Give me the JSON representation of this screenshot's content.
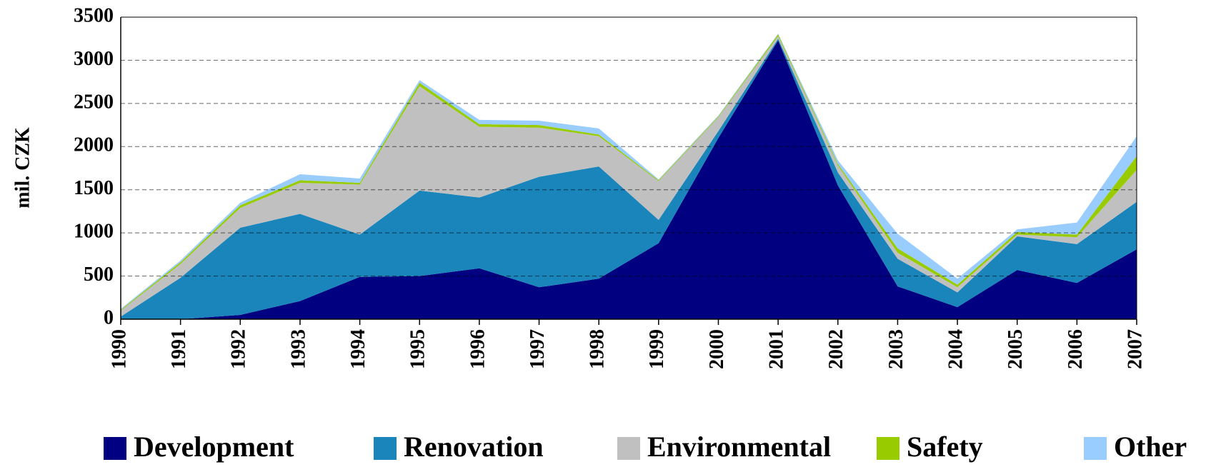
{
  "chart_data": {
    "type": "stacked_area",
    "y_label": "mil. CZK",
    "categories": [
      "1990",
      "1991",
      "1992",
      "1993",
      "1994",
      "1995",
      "1996",
      "1997",
      "1998",
      "1999",
      "2000",
      "2001",
      "2002",
      "2003",
      "2004",
      "2005",
      "2006",
      "2007"
    ],
    "series": [
      {
        "name": "Development",
        "color": "#000080",
        "values": [
          0,
          0,
          50,
          210,
          490,
          500,
          590,
          370,
          470,
          880,
          2100,
          3230,
          1550,
          380,
          140,
          570,
          420,
          810
        ]
      },
      {
        "name": "Renovation",
        "color": "#1a85bb",
        "values": [
          30,
          480,
          1010,
          1010,
          490,
          990,
          820,
          1280,
          1300,
          270,
          80,
          20,
          150,
          320,
          170,
          390,
          450,
          550
        ]
      },
      {
        "name": "Environmental",
        "color": "#c0c0c0",
        "values": [
          70,
          160,
          230,
          360,
          580,
          1210,
          820,
          570,
          350,
          450,
          160,
          30,
          80,
          70,
          60,
          20,
          80,
          370
        ]
      },
      {
        "name": "Safety",
        "color": "#99cc00",
        "values": [
          10,
          20,
          30,
          30,
          20,
          40,
          30,
          30,
          20,
          10,
          10,
          20,
          20,
          50,
          30,
          30,
          30,
          160
        ]
      },
      {
        "name": "Other",
        "color": "#99ccff",
        "values": [
          10,
          20,
          30,
          70,
          50,
          30,
          50,
          50,
          70,
          10,
          10,
          10,
          40,
          170,
          70,
          30,
          140,
          230
        ]
      }
    ],
    "ylim": [
      0,
      3500
    ],
    "yticks": [
      0,
      500,
      1000,
      1500,
      2000,
      2500,
      3000,
      3500
    ],
    "grid": true,
    "legend": "bottom"
  }
}
